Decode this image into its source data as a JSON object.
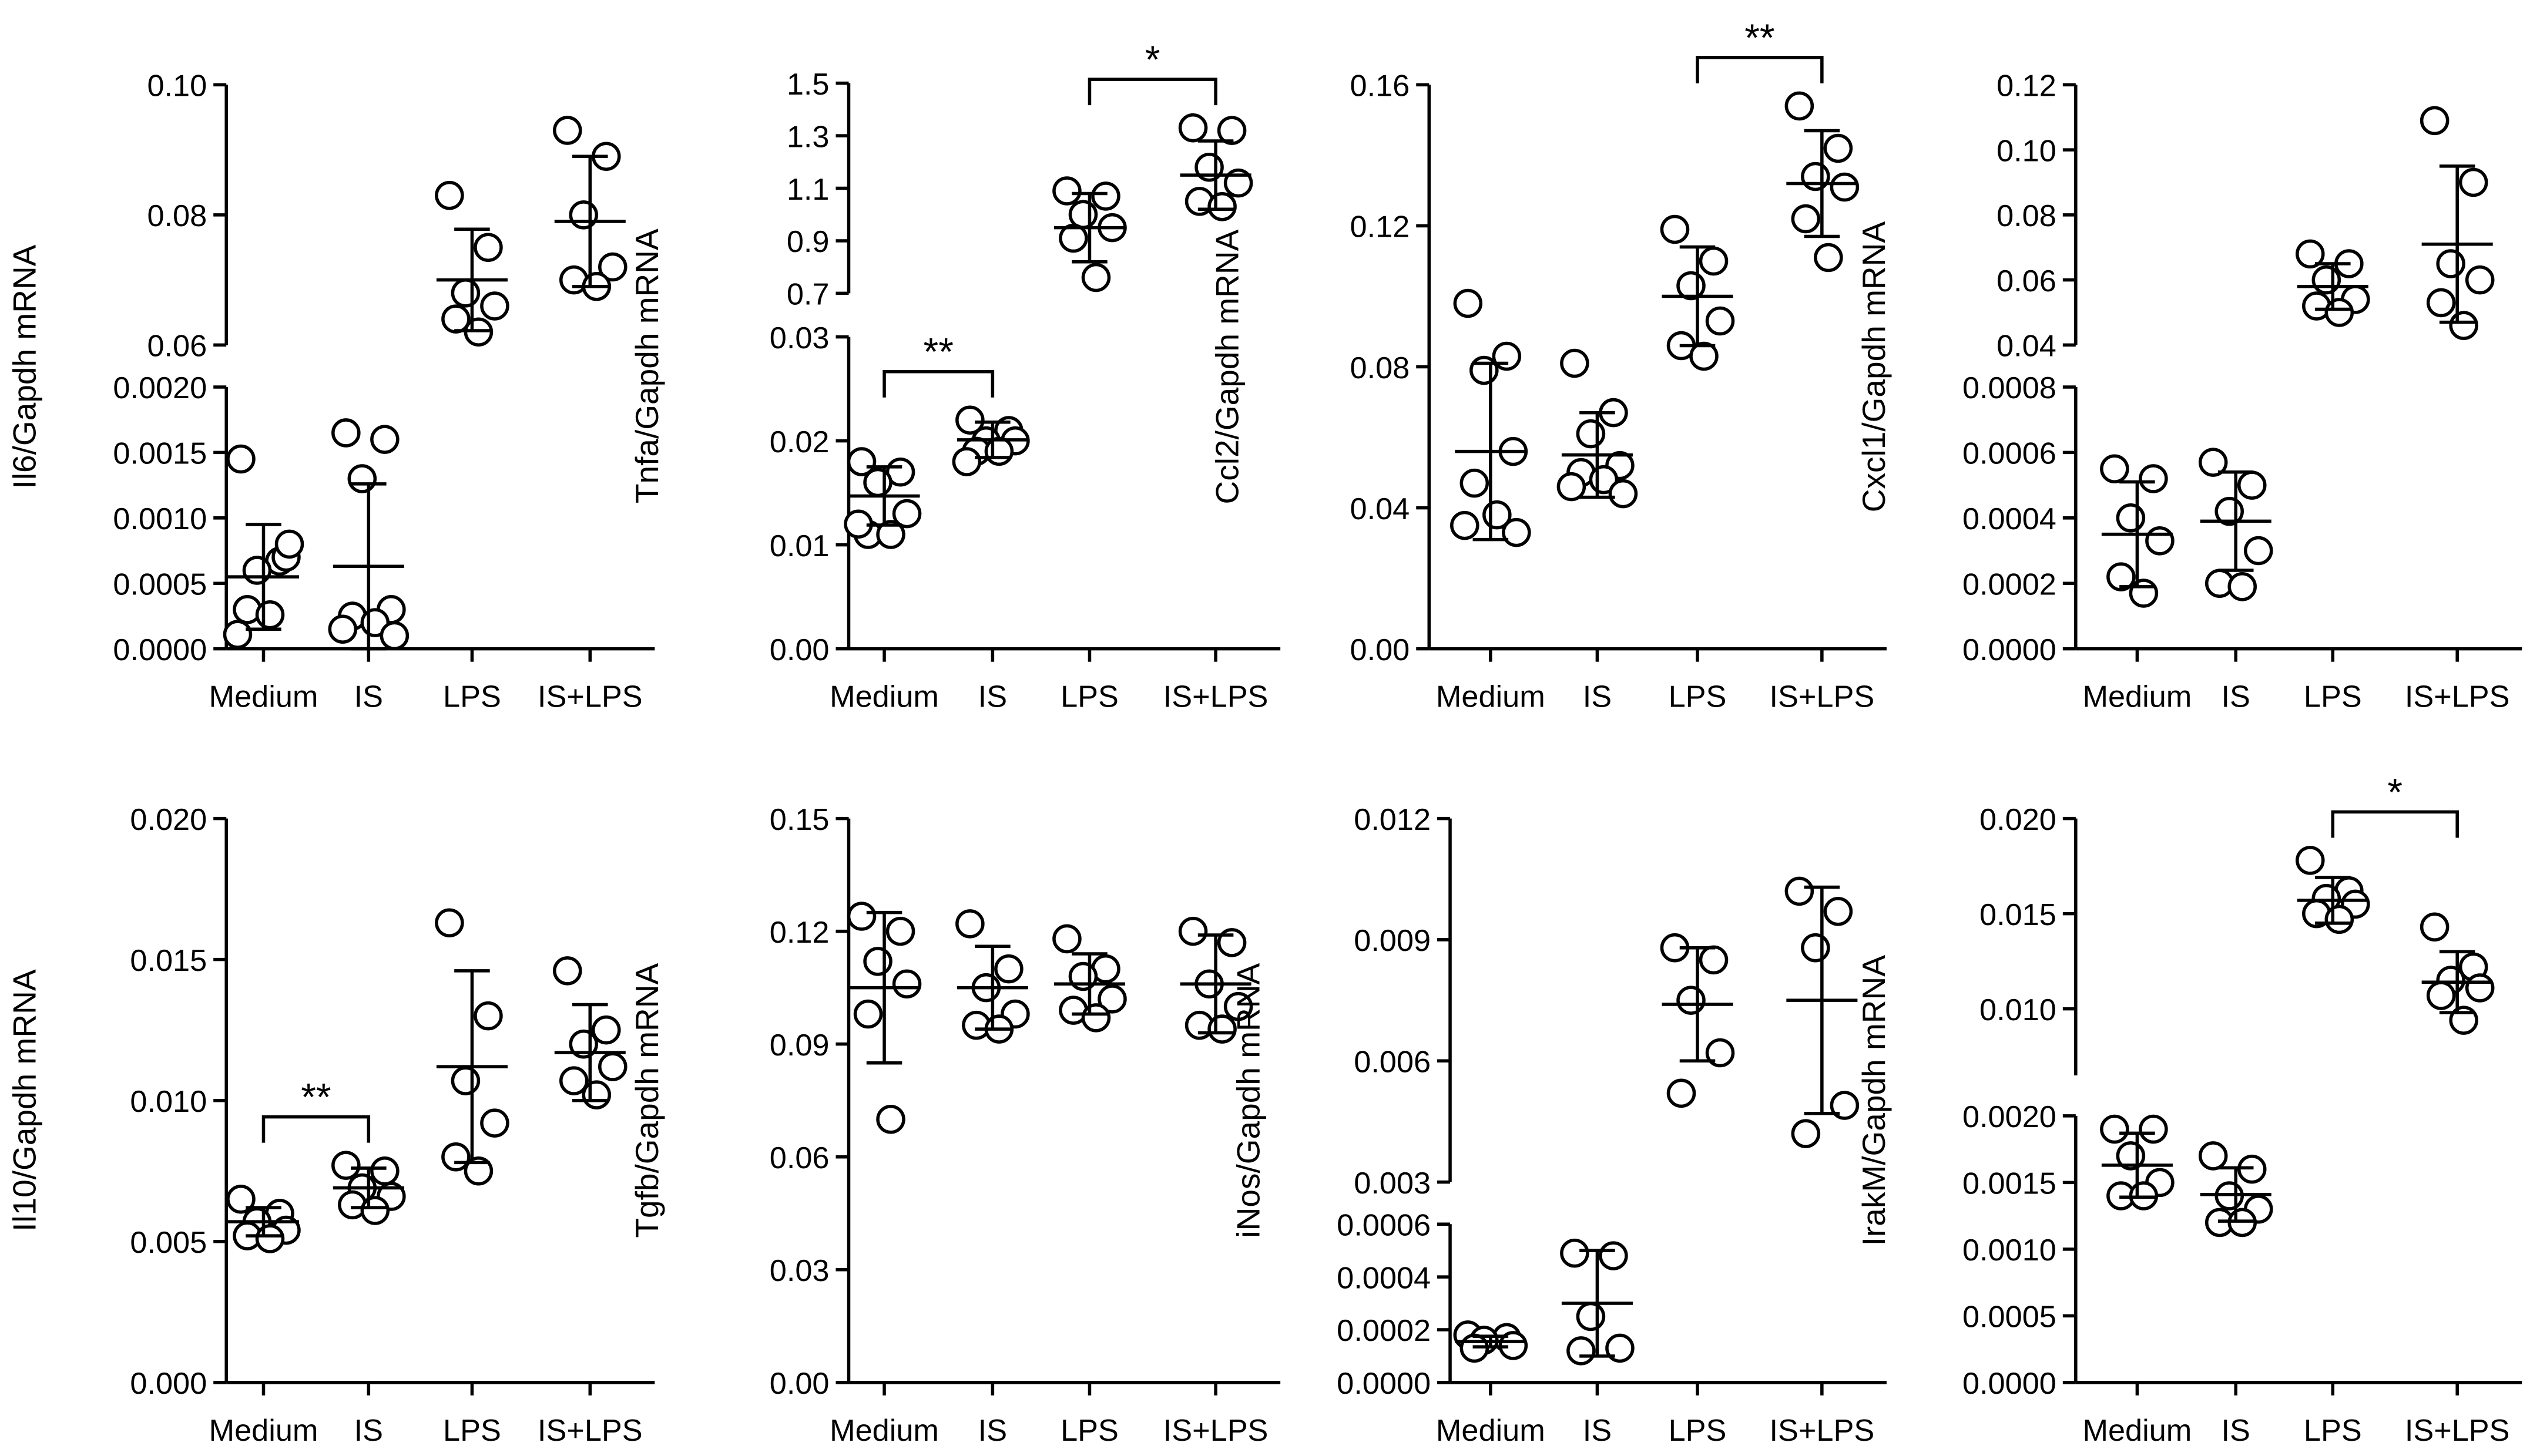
{
  "chart_data": [
    {
      "type": "dotplot",
      "ylabel": "Il6/Gapdh mRNA",
      "categories": [
        "Medium",
        "IS",
        "LPS",
        "IS+LPS"
      ],
      "ylim": [
        0,
        0.002
      ],
      "yticks": [
        {
          "value": 0,
          "label": "0.0000"
        },
        0.0005,
        {
          "value": 0.001,
          "label": "0.0010"
        },
        0.0015,
        {
          "value": 0.002,
          "label": "0.0020"
        }
      ],
      "ylim_upper": [
        0.06,
        0.1
      ],
      "yticks_upper": [
        0.06,
        0.08,
        {
          "value": 0.1,
          "label": "0.10"
        }
      ],
      "groups": [
        {
          "points": [
            0.00145,
            0.00067,
            0.0006,
            0.0007,
            0.0003,
            0.00026,
            0.00011,
            0.0008
          ],
          "mean": 0.00055,
          "sd": 0.0004
        },
        {
          "points": [
            0.00165,
            0.0016,
            0.0013,
            0.0003,
            0.00025,
            0.0002,
            0.00015,
            0.0001
          ],
          "mean": 0.00063,
          "sd": 0.00063
        },
        {
          "points": [
            0.083,
            0.075,
            0.068,
            0.066,
            0.064,
            0.062
          ],
          "mean": 0.07,
          "sd": 0.0078
        },
        {
          "points": [
            0.093,
            0.089,
            0.08,
            0.072,
            0.07,
            0.069
          ],
          "mean": 0.079,
          "sd": 0.01
        }
      ],
      "brackets": []
    },
    {
      "type": "dotplot",
      "ylabel": "Tnfa/Gapdh mRNA",
      "categories": [
        "Medium",
        "IS",
        "LPS",
        "IS+LPS"
      ],
      "ylim": [
        0,
        0.03
      ],
      "yticks": [
        {
          "value": 0,
          "label": "0.00"
        },
        0.01,
        0.02,
        0.03
      ],
      "ylim_upper": [
        0.7,
        1.5
      ],
      "yticks_upper": [
        0.7,
        0.9,
        1.1,
        1.3,
        1.5
      ],
      "groups": [
        {
          "points": [
            0.018,
            0.017,
            0.016,
            0.013,
            0.011,
            0.011,
            0.012
          ],
          "mean": 0.0147,
          "sd": 0.0028
        },
        {
          "points": [
            0.022,
            0.021,
            0.02,
            0.02,
            0.019,
            0.019,
            0.018
          ],
          "mean": 0.0201,
          "sd": 0.0017
        },
        {
          "points": [
            1.09,
            1.07,
            1.0,
            0.95,
            0.91,
            0.76
          ],
          "mean": 0.95,
          "sd": 0.13
        },
        {
          "points": [
            1.33,
            1.32,
            1.18,
            1.12,
            1.05,
            1.03
          ],
          "mean": 1.15,
          "sd": 0.13
        }
      ],
      "brackets": [
        {
          "from": 0,
          "to": 1,
          "label": "**"
        },
        {
          "from": 2,
          "to": 3,
          "label": "*"
        }
      ]
    },
    {
      "type": "dotplot",
      "ylabel": "Ccl2/Gapdh mRNA",
      "categories": [
        "Medium",
        "IS",
        "LPS",
        "IS+LPS"
      ],
      "ylim": [
        0,
        0.16
      ],
      "yticks": [
        {
          "value": 0,
          "label": "0.00"
        },
        0.04,
        0.08,
        0.12,
        0.16
      ],
      "groups": [
        {
          "points": [
            0.098,
            0.083,
            0.079,
            0.056,
            0.047,
            0.038,
            0.035,
            0.033
          ],
          "mean": 0.056,
          "sd": 0.025
        },
        {
          "points": [
            0.081,
            0.067,
            0.061,
            0.052,
            0.05,
            0.048,
            0.046,
            0.044
          ],
          "mean": 0.055,
          "sd": 0.012
        },
        {
          "points": [
            0.119,
            0.11,
            0.103,
            0.093,
            0.086,
            0.083
          ],
          "mean": 0.1,
          "sd": 0.014
        },
        {
          "points": [
            0.154,
            0.142,
            0.134,
            0.131,
            0.122,
            0.111
          ],
          "mean": 0.132,
          "sd": 0.015
        }
      ],
      "brackets": [
        {
          "from": 2,
          "to": 3,
          "label": "**"
        }
      ]
    },
    {
      "type": "dotplot",
      "ylabel": "Cxcl1/Gapdh mRNA",
      "categories": [
        "Medium",
        "IS",
        "LPS",
        "IS+LPS"
      ],
      "ylim": [
        0,
        0.0008
      ],
      "yticks": [
        {
          "value": 0,
          "label": "0.0000"
        },
        0.0002,
        0.0004,
        0.0006,
        0.0008
      ],
      "ylim_upper": [
        0.04,
        0.12
      ],
      "yticks_upper": [
        0.04,
        0.06,
        0.08,
        {
          "value": 0.1,
          "label": "0.10"
        },
        0.12
      ],
      "groups": [
        {
          "points": [
            0.00055,
            0.00052,
            0.0004,
            0.00033,
            0.00022,
            0.00017
          ],
          "mean": 0.00035,
          "sd": 0.00016
        },
        {
          "points": [
            0.00057,
            0.0005,
            0.00042,
            0.0003,
            0.0002,
            0.00019
          ],
          "mean": 0.00039,
          "sd": 0.00015
        },
        {
          "points": [
            0.068,
            0.065,
            0.06,
            0.054,
            0.052,
            0.05
          ],
          "mean": 0.058,
          "sd": 0.007
        },
        {
          "points": [
            0.109,
            0.09,
            0.065,
            0.06,
            0.053,
            0.046
          ],
          "mean": 0.071,
          "sd": 0.024
        }
      ],
      "brackets": []
    },
    {
      "type": "dotplot",
      "ylabel": "Il10/Gapdh mRNA",
      "categories": [
        "Medium",
        "IS",
        "LPS",
        "IS+LPS"
      ],
      "ylim": [
        0,
        0.02
      ],
      "yticks": [
        {
          "value": 0,
          "label": "0.000"
        },
        0.005,
        {
          "value": 0.01,
          "label": "0.010"
        },
        0.015,
        {
          "value": 0.02,
          "label": "0.020"
        }
      ],
      "groups": [
        {
          "points": [
            0.0065,
            0.006,
            0.0057,
            0.0054,
            0.0052,
            0.0051
          ],
          "mean": 0.0057,
          "sd": 0.0005
        },
        {
          "points": [
            0.0077,
            0.0075,
            0.0069,
            0.0066,
            0.0063,
            0.0061
          ],
          "mean": 0.0069,
          "sd": 0.0007
        },
        {
          "points": [
            0.0163,
            0.013,
            0.0107,
            0.0092,
            0.008,
            0.0075
          ],
          "mean": 0.0112,
          "sd": 0.0034
        },
        {
          "points": [
            0.0146,
            0.0125,
            0.012,
            0.0112,
            0.0107,
            0.0102
          ],
          "mean": 0.0117,
          "sd": 0.0017
        }
      ],
      "brackets": [
        {
          "from": 0,
          "to": 1,
          "label": "**"
        }
      ]
    },
    {
      "type": "dotplot",
      "ylabel": "Tgfb/Gapdh mRNA",
      "categories": [
        "Medium",
        "IS",
        "LPS",
        "IS+LPS"
      ],
      "ylim": [
        0,
        0.15
      ],
      "yticks": [
        {
          "value": 0,
          "label": "0.00"
        },
        0.03,
        0.06,
        0.09,
        0.12,
        0.15
      ],
      "groups": [
        {
          "points": [
            0.124,
            0.12,
            0.112,
            0.106,
            0.098,
            0.07
          ],
          "mean": 0.105,
          "sd": 0.02
        },
        {
          "points": [
            0.122,
            0.11,
            0.105,
            0.098,
            0.095,
            0.094
          ],
          "mean": 0.105,
          "sd": 0.011
        },
        {
          "points": [
            0.118,
            0.11,
            0.108,
            0.102,
            0.099,
            0.097
          ],
          "mean": 0.106,
          "sd": 0.008
        },
        {
          "points": [
            0.12,
            0.117,
            0.106,
            0.1,
            0.095,
            0.094
          ],
          "mean": 0.106,
          "sd": 0.013
        }
      ],
      "brackets": []
    },
    {
      "type": "dotplot",
      "ylabel": "iNos/Gapdh mRNA",
      "categories": [
        "Medium",
        "IS",
        "LPS",
        "IS+LPS"
      ],
      "ylim": [
        0,
        0.0006
      ],
      "yticks": [
        {
          "value": 0,
          "label": "0.0000"
        },
        0.0002,
        0.0004,
        0.0006
      ],
      "ylim_upper": [
        0.003,
        0.012
      ],
      "yticks_upper": [
        0.003,
        0.006,
        0.009,
        0.012
      ],
      "groups": [
        {
          "points": [
            0.00018,
            0.00017,
            0.00016,
            0.00014,
            0.00013
          ],
          "mean": 0.000155,
          "sd": 2e-05
        },
        {
          "points": [
            0.00049,
            0.00048,
            0.00025,
            0.00013,
            0.00012
          ],
          "mean": 0.0003,
          "sd": 0.0002
        },
        {
          "points": [
            0.0088,
            0.0085,
            0.0075,
            0.0062,
            0.0052
          ],
          "mean": 0.0074,
          "sd": 0.0014
        },
        {
          "points": [
            0.0102,
            0.0097,
            0.0088,
            0.0049,
            0.0042
          ],
          "mean": 0.0075,
          "sd": 0.0028
        }
      ],
      "brackets": []
    },
    {
      "type": "dotplot",
      "ylabel": "IrakM/Gapdh mRNA",
      "categories": [
        "Medium",
        "IS",
        "LPS",
        "IS+LPS"
      ],
      "ylim": [
        0,
        0.002
      ],
      "yticks": [
        {
          "value": 0,
          "label": "0.0000"
        },
        0.0005,
        {
          "value": 0.001,
          "label": "0.0010"
        },
        0.0015,
        {
          "value": 0.002,
          "label": "0.0020"
        }
      ],
      "ylim_upper": [
        0.0065,
        0.02
      ],
      "yticks_upper": [
        {
          "value": 0.01,
          "label": "0.010"
        },
        0.015,
        {
          "value": 0.02,
          "label": "0.020"
        }
      ],
      "groups": [
        {
          "points": [
            0.0019,
            0.0019,
            0.0017,
            0.0015,
            0.0014,
            0.0014
          ],
          "mean": 0.00163,
          "sd": 0.00024
        },
        {
          "points": [
            0.0017,
            0.0016,
            0.0014,
            0.0013,
            0.0012,
            0.0012
          ],
          "mean": 0.00141,
          "sd": 0.0002
        },
        {
          "points": [
            0.0178,
            0.0162,
            0.0158,
            0.0155,
            0.015,
            0.0147
          ],
          "mean": 0.0157,
          "sd": 0.0012
        },
        {
          "points": [
            0.0143,
            0.0122,
            0.0115,
            0.0111,
            0.0107,
            0.0094
          ],
          "mean": 0.0114,
          "sd": 0.0016
        }
      ],
      "brackets": [
        {
          "from": 2,
          "to": 3,
          "label": "*"
        }
      ]
    }
  ]
}
